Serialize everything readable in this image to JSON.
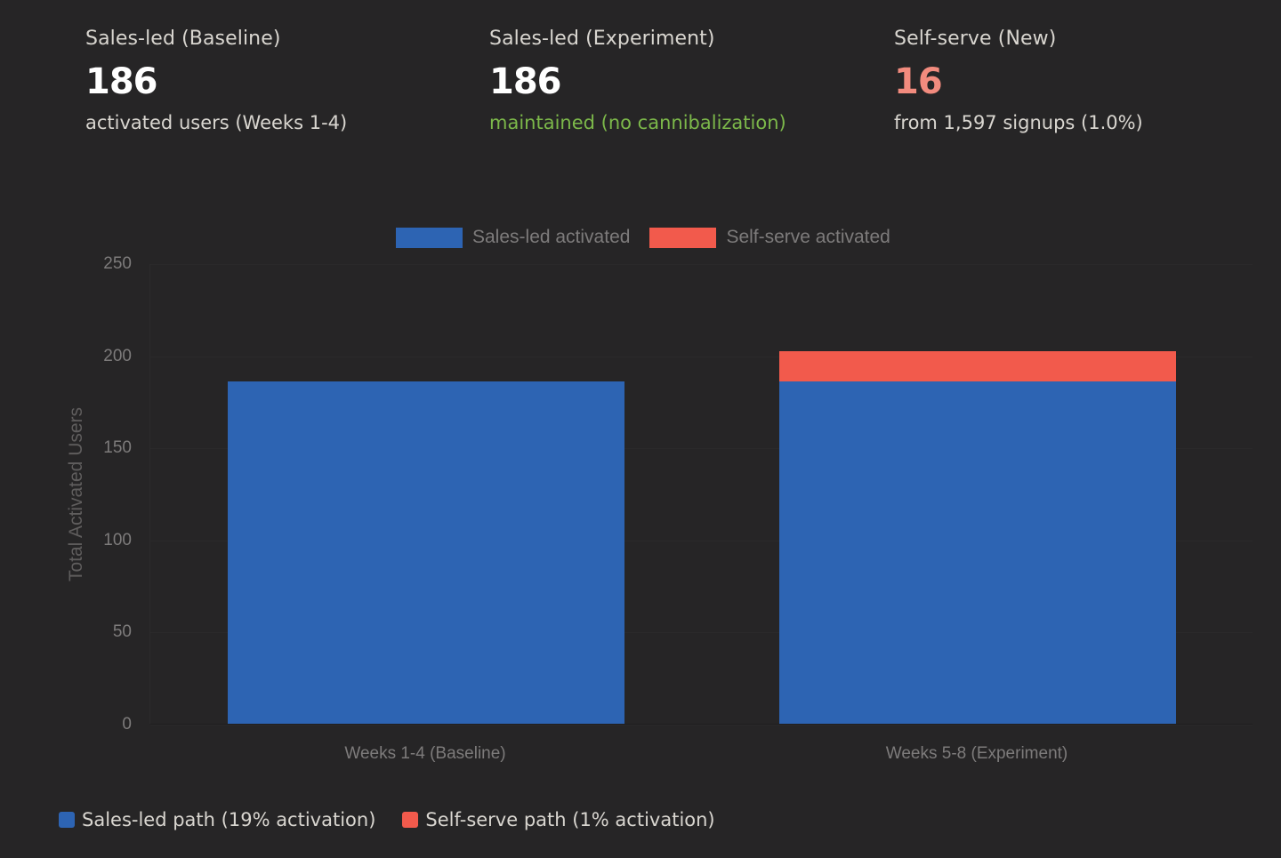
{
  "kpis": [
    {
      "label": "Sales-led (Baseline)",
      "value": "186",
      "subtext": "activated users (Weeks 1-4)",
      "value_color": "#ffffff",
      "subtext_color": "#d9d6d0"
    },
    {
      "label": "Sales-led (Experiment)",
      "value": "186",
      "subtext": "maintained (no cannibalization)",
      "value_color": "#ffffff",
      "subtext_color": "#7cb84a"
    },
    {
      "label": "Self-serve (New)",
      "value": "16",
      "subtext": "from 1,597 signups (1.0%)",
      "value_color": "#f28b7e",
      "subtext_color": "#d9d6d0"
    }
  ],
  "colors": {
    "sales_led": "#2d64b3",
    "self_serve": "#f25a4c",
    "background": "#262526"
  },
  "chart_legend": [
    {
      "label": "Sales-led activated",
      "color": "#2d64b3"
    },
    {
      "label": "Self-serve activated",
      "color": "#f25a4c"
    }
  ],
  "footer_legend": [
    {
      "label": "Sales-led path (19% activation)",
      "color": "#2d64b3"
    },
    {
      "label": "Self-serve path (1% activation)",
      "color": "#f25a4c"
    }
  ],
  "chart_data": {
    "type": "bar",
    "stacked": true,
    "title": "",
    "xlabel": "",
    "ylabel": "Total Activated Users",
    "ylim": [
      0,
      250
    ],
    "yticks": [
      "0",
      "50",
      "100",
      "150",
      "200",
      "250"
    ],
    "categories": [
      "Weeks 1-4 (Baseline)",
      "Weeks 5-8 (Experiment)"
    ],
    "series": [
      {
        "name": "Sales-led activated",
        "color": "#2d64b3",
        "values": [
          186,
          186
        ]
      },
      {
        "name": "Self-serve activated",
        "color": "#f25a4c",
        "values": [
          0,
          16
        ]
      }
    ],
    "legend_position": "top",
    "grid": true
  }
}
